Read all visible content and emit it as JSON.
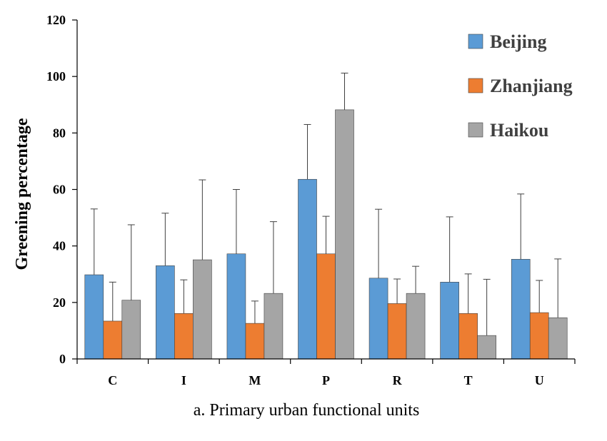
{
  "chart_data": {
    "type": "bar",
    "title": "",
    "xlabel": "a. Primary urban functional units",
    "ylabel": "Greening percentage",
    "ylim": [
      0,
      120
    ],
    "yticks": [
      "0",
      "20",
      "40",
      "60",
      "80",
      "100",
      "120"
    ],
    "categories": [
      "C",
      "I",
      "M",
      "P",
      "R",
      "T",
      "U"
    ],
    "legend_position": "top-right",
    "error_bars": "upper",
    "series": [
      {
        "name": "Beijing",
        "color": "#5b9bd5",
        "values": [
          29.8,
          33.0,
          37.2,
          63.6,
          28.6,
          27.2,
          35.3
        ],
        "errors": [
          23.3,
          18.6,
          22.8,
          19.4,
          24.4,
          23.1,
          23.1
        ]
      },
      {
        "name": "Zhanjiang",
        "color": "#ed7d31",
        "values": [
          13.4,
          16.1,
          12.6,
          37.2,
          19.6,
          16.1,
          16.4
        ],
        "errors": [
          13.8,
          11.9,
          7.9,
          13.3,
          8.7,
          14.0,
          11.4
        ]
      },
      {
        "name": "Haikou",
        "color": "#a5a5a5",
        "values": [
          20.8,
          35.1,
          23.2,
          88.2,
          23.2,
          8.3,
          14.6
        ],
        "errors": [
          26.7,
          28.3,
          25.4,
          13.0,
          9.6,
          19.9,
          20.8
        ]
      }
    ]
  }
}
